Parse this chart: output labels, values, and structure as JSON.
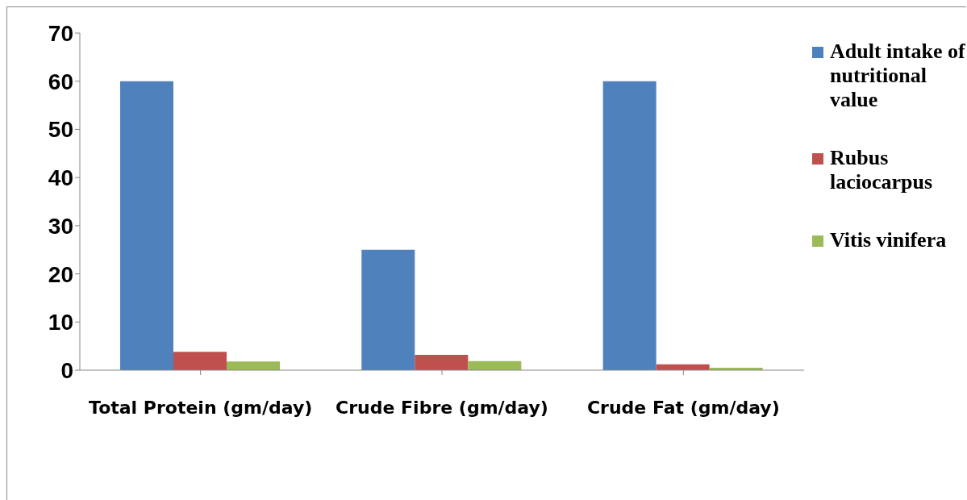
{
  "chart_data": {
    "type": "bar",
    "categories": [
      "Total Protein (gm/day)",
      "Crude Fibre (gm/day)",
      "Crude Fat (gm/day)"
    ],
    "series": [
      {
        "name": "Adult intake of nutritional value",
        "color": "#4f81bd",
        "values": [
          60,
          25,
          60
        ]
      },
      {
        "name": "Rubus laciocarpus",
        "color": "#c0504d",
        "values": [
          3.8,
          3.2,
          1.2
        ]
      },
      {
        "name": "Vitis vinifera",
        "color": "#9bbb59",
        "values": [
          1.8,
          1.9,
          0.5
        ]
      }
    ],
    "ylim": [
      0,
      70
    ],
    "yticks": [
      0,
      10,
      20,
      30,
      40,
      50,
      60,
      70
    ],
    "grid": false,
    "legend": "top right"
  }
}
